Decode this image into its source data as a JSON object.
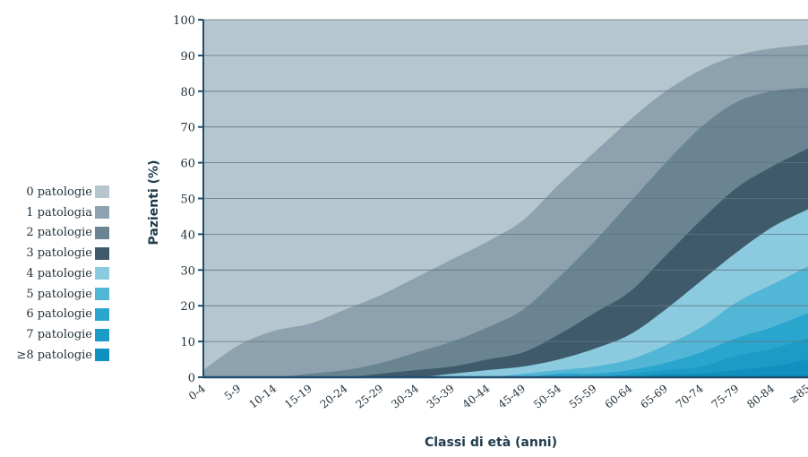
{
  "chart_data": {
    "type": "area",
    "stacked": false,
    "ylabel": "Pazienti (%)",
    "xlabel": "Classi di età (anni)",
    "ylim": [
      0,
      100
    ],
    "yticks": [
      "0",
      "10",
      "20",
      "30",
      "40",
      "50",
      "60",
      "70",
      "80",
      "90",
      "100"
    ],
    "grid": true,
    "legend_position": "left",
    "categories": [
      "0-4",
      "5-9",
      "10-14",
      "15-19",
      "20-24",
      "25-29",
      "30-34",
      "35-39",
      "40-44",
      "45-49",
      "50-54",
      "55-59",
      "60-64",
      "65-69",
      "70-74",
      "75-79",
      "80-84",
      "≥85"
    ],
    "series": [
      {
        "name": "0 patologie",
        "color": "#b6c6cf",
        "values": [
          100,
          100,
          100,
          100,
          100,
          100,
          100,
          100,
          100,
          100,
          100,
          100,
          100,
          100,
          100,
          100,
          100,
          100
        ]
      },
      {
        "name": "1 patologia",
        "color": "#8da2ae",
        "values": [
          2,
          9,
          13,
          15,
          19,
          23,
          28,
          33,
          38,
          44,
          54,
          63,
          72,
          80,
          86,
          90,
          92,
          93
        ]
      },
      {
        "name": "2 patologie",
        "color": "#6a8492",
        "values": [
          0,
          0,
          0,
          1,
          2,
          4,
          7,
          10,
          14,
          19,
          28,
          38,
          49,
          60,
          70,
          77,
          80,
          81
        ]
      },
      {
        "name": "3 patologie",
        "color": "#3f5b6b",
        "values": [
          0,
          0,
          0,
          0,
          0,
          1,
          2,
          3,
          5,
          7,
          12,
          18,
          24,
          34,
          44,
          53,
          59,
          64
        ]
      },
      {
        "name": "4 patologie",
        "color": "#8ccbdf",
        "values": [
          0,
          0,
          0,
          0,
          0,
          0,
          0,
          1,
          2,
          3,
          5,
          8,
          12,
          19,
          27,
          35,
          42,
          47
        ]
      },
      {
        "name": "5 patologie",
        "color": "#52b7d6",
        "values": [
          0,
          0,
          0,
          0,
          0,
          0,
          0,
          0,
          0,
          1,
          2,
          3,
          5,
          9,
          14,
          21,
          26,
          31
        ]
      },
      {
        "name": "6 patologie",
        "color": "#2aa5cd",
        "values": [
          0,
          0,
          0,
          0,
          0,
          0,
          0,
          0,
          0,
          0,
          1,
          1,
          2,
          4,
          7,
          11,
          14,
          18
        ]
      },
      {
        "name": "7 patologie",
        "color": "#1c9bc6",
        "values": [
          0,
          0,
          0,
          0,
          0,
          0,
          0,
          0,
          0,
          0,
          0,
          0,
          1,
          2,
          3,
          6,
          8,
          11
        ]
      },
      {
        "name": "≥8 patologie",
        "color": "#0f90bf",
        "values": [
          0,
          0,
          0,
          0,
          0,
          0,
          0,
          0,
          0,
          0,
          0,
          0,
          0,
          1,
          1,
          2,
          3,
          5
        ]
      }
    ]
  }
}
